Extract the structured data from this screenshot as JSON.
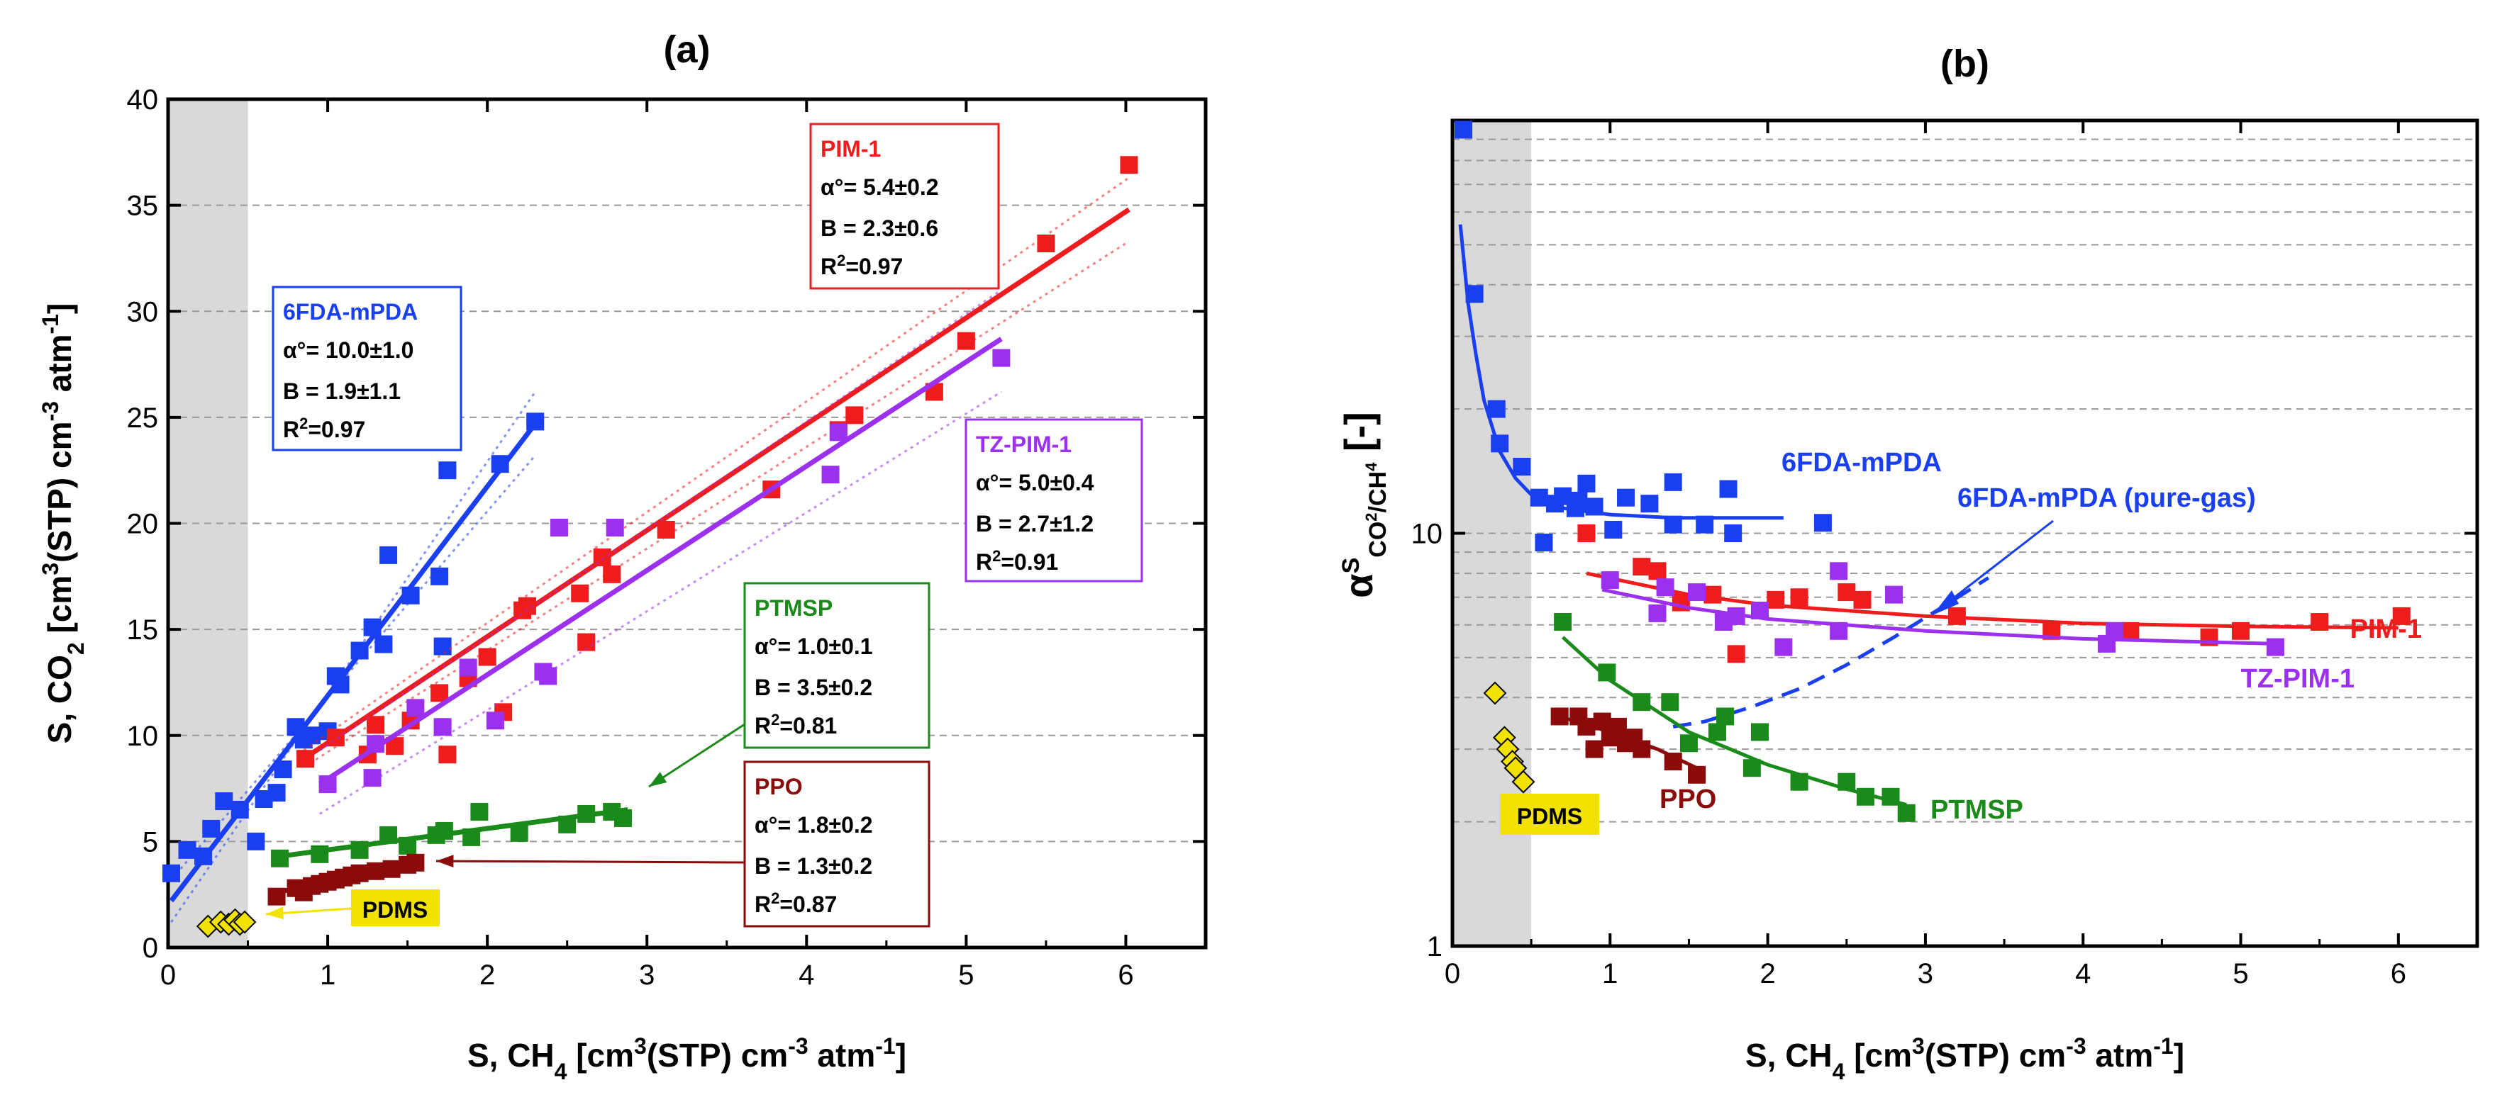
{
  "chart_data": [
    {
      "type": "scatter",
      "title": "(a)",
      "xlabel": {
        "main": "S, CH",
        "sub": "4",
        "rest": " [cm",
        "sup": "3",
        "rest2": "(STP) cm",
        "sup2": "-3",
        "rest3": " atm",
        "sup3": "-1",
        "end": "]"
      },
      "ylabel": {
        "main": "S, CO",
        "sub": "2",
        "rest": " [cm",
        "sup": "3",
        "rest2": "(STP) cm",
        "sup2": "-3",
        "rest3": " atm",
        "sup3": "-1",
        "end": "]"
      },
      "xlim": [
        0,
        6.5
      ],
      "ylim": [
        0,
        40
      ],
      "xticks": [
        0,
        1,
        2,
        3,
        4,
        5,
        6
      ],
      "yticks": [
        0,
        5,
        10,
        15,
        20,
        25,
        30,
        35,
        40
      ],
      "grid": "horizontal dashed",
      "shaded_x": [
        0,
        0.5
      ],
      "series": [
        {
          "name": "6FDA-mPDA",
          "color": "#1a3ff0",
          "marker": "square",
          "x": [
            0.02,
            0.12,
            0.22,
            0.27,
            0.35,
            0.45,
            0.55,
            0.6,
            0.68,
            0.72,
            0.8,
            0.85,
            0.9,
            1.0,
            1.05,
            1.08,
            1.2,
            1.28,
            1.35,
            1.38,
            1.52,
            1.7,
            1.75,
            1.72,
            2.08,
            2.3
          ],
          "y": [
            3.5,
            4.6,
            4.3,
            5.6,
            6.9,
            6.5,
            5.0,
            7.0,
            7.3,
            8.4,
            10.4,
            9.8,
            10.0,
            10.2,
            12.8,
            12.4,
            14.0,
            15.1,
            14.3,
            18.5,
            16.6,
            17.5,
            22.5,
            14.2,
            22.8,
            24.8
          ],
          "fit": {
            "x": [
              0.02,
              2.3
            ],
            "y": [
              2.2,
              24.7
            ]
          },
          "band_upper": {
            "x": [
              0.02,
              2.3
            ],
            "y": [
              1.2,
              26.2
            ]
          },
          "band_lower": {
            "x": [
              0.02,
              2.3
            ],
            "y": [
              3.2,
              23.2
            ]
          },
          "box": {
            "name": "6FDA-mPDA",
            "alpha": "α°= 10.0±1.0",
            "b": "B = 1.9±1.1",
            "r2": "R",
            "r2sup": "2",
            "r2val": "=0.97"
          }
        },
        {
          "name": "PIM-1",
          "color": "#ee1c1c",
          "marker": "square",
          "x": [
            0.86,
            1.05,
            1.25,
            1.3,
            1.42,
            1.52,
            1.7,
            1.75,
            1.88,
            2.0,
            2.1,
            2.22,
            2.25,
            2.58,
            2.62,
            2.72,
            2.78,
            3.12,
            3.78,
            4.2,
            4.3,
            4.8,
            5.0,
            5.5,
            6.02
          ],
          "y": [
            8.9,
            9.9,
            9.1,
            10.5,
            9.5,
            10.7,
            12.0,
            9.1,
            12.7,
            13.7,
            11.1,
            15.9,
            16.1,
            16.7,
            14.4,
            18.4,
            17.6,
            19.7,
            21.6,
            24.4,
            25.1,
            26.2,
            28.6,
            33.2,
            36.9
          ],
          "fit": {
            "x": [
              0.85,
              6.02
            ],
            "y": [
              8.9,
              34.8
            ]
          },
          "band_upper": {
            "x": [
              0.85,
              6.02
            ],
            "y": [
              9.3,
              36.3
            ]
          },
          "band_lower": {
            "x": [
              0.85,
              6.02
            ],
            "y": [
              8.5,
              33.3
            ]
          },
          "box": {
            "name": "PIM-1",
            "alpha": "α°= 5.4±0.2",
            "b": "B = 2.3±0.6",
            "r2": "R",
            "r2sup": "2",
            "r2val": "=0.97"
          }
        },
        {
          "name": "TZ-PIM-1",
          "color": "#9b30ee",
          "marker": "square",
          "x": [
            1.0,
            1.28,
            1.3,
            1.55,
            1.72,
            1.88,
            2.05,
            2.35,
            2.38,
            2.45,
            2.8,
            4.15,
            4.2,
            5.22
          ],
          "y": [
            7.7,
            8.0,
            9.6,
            11.3,
            10.4,
            13.2,
            10.7,
            13.0,
            12.8,
            19.8,
            19.8,
            22.3,
            24.3,
            27.8
          ],
          "fit": {
            "x": [
              0.95,
              5.22
            ],
            "y": [
              7.7,
              28.7
            ]
          },
          "band_upper": {
            "x": [
              0.95,
              5.22
            ],
            "y": [
              9.3,
              31.0
            ]
          },
          "band_lower": {
            "x": [
              0.95,
              5.22
            ],
            "y": [
              6.3,
              26.2
            ]
          },
          "box": {
            "name": "TZ-PIM-1",
            "alpha": "α°= 5.0±0.4",
            "b": "B = 2.7±1.2",
            "r2": "R",
            "r2sup": "2",
            "r2val": "=0.91"
          }
        },
        {
          "name": "PTMSP",
          "color": "#1a8a1a",
          "marker": "square",
          "x": [
            0.7,
            0.95,
            1.2,
            1.38,
            1.5,
            1.68,
            1.73,
            1.9,
            1.95,
            2.2,
            2.5,
            2.62,
            2.78,
            2.85
          ],
          "y": [
            4.2,
            4.4,
            4.6,
            5.3,
            4.8,
            5.3,
            5.5,
            5.2,
            6.4,
            5.4,
            5.8,
            6.3,
            6.4,
            6.1
          ],
          "fit": {
            "x": [
              0.7,
              2.88
            ],
            "y": [
              4.3,
              6.5
            ]
          },
          "box": {
            "name": "PTMSP",
            "alpha": "α°= 1.0±0.1",
            "b": "B = 3.5±0.2",
            "r2": "R",
            "r2sup": "2",
            "r2val": "=0.81"
          }
        },
        {
          "name": "PPO",
          "color": "#8b0a0a",
          "marker": "square",
          "x": [
            0.68,
            0.8,
            0.85,
            0.9,
            0.95,
            1.0,
            1.05,
            1.1,
            1.15,
            1.2,
            1.3,
            1.4,
            1.5,
            1.55
          ],
          "y": [
            2.4,
            2.8,
            2.6,
            2.9,
            3.0,
            3.1,
            3.2,
            3.3,
            3.4,
            3.5,
            3.6,
            3.7,
            3.9,
            4.0
          ],
          "fit": {
            "x": [
              0.68,
              1.55
            ],
            "y": [
              2.6,
              3.9
            ]
          },
          "box": {
            "name": "PPO",
            "alpha": "α°= 1.8±0.2",
            "b": "B = 1.3±0.2",
            "r2": "R",
            "r2sup": "2",
            "r2val": "=0.87"
          }
        },
        {
          "name": "PDMS",
          "color": "#f2e200",
          "marker": "diamond",
          "x": [
            0.25,
            0.33,
            0.38,
            0.42,
            0.45,
            0.48
          ],
          "y": [
            1.0,
            1.2,
            1.1,
            1.3,
            1.1,
            1.2
          ],
          "label": "PDMS"
        }
      ]
    },
    {
      "type": "scatter",
      "title": "(b)",
      "xlabel": {
        "main": "S, CH",
        "sub": "4",
        "rest": " [cm",
        "sup": "3",
        "rest2": "(STP) cm",
        "sup2": "-3",
        "rest3": " atm",
        "sup3": "-1",
        "end": "]"
      },
      "ylabel": {
        "alpha": "α",
        "sup": "S",
        "sub": "CO",
        "sub2": "2",
        "slash": "/CH",
        "sub3": "4",
        "unit": "[-]"
      },
      "yscale": "log",
      "xlim": [
        0,
        6.5
      ],
      "ylim": [
        1,
        100
      ],
      "xticks": [
        0,
        1,
        2,
        3,
        4,
        5,
        6
      ],
      "yticks": [
        1,
        10
      ],
      "ytick_labels": [
        "1",
        "10"
      ],
      "grid": "horizontal dashed minor",
      "shaded_x": [
        0,
        0.5
      ],
      "series": [
        {
          "name": "6FDA-mPDA",
          "color": "#1a3ff0",
          "marker": "square",
          "x": [
            0.07,
            0.14,
            0.28,
            0.3,
            0.44,
            0.55,
            0.58,
            0.65,
            0.7,
            0.78,
            0.8,
            0.85,
            0.9,
            1.02,
            1.1,
            1.25,
            1.4,
            1.4,
            1.6,
            1.75,
            1.78,
            2.35
          ],
          "y": [
            95,
            38,
            20,
            16.5,
            14.5,
            12.2,
            9.5,
            11.8,
            12.3,
            11.5,
            12.0,
            13.2,
            11.6,
            10.2,
            12.2,
            11.8,
            10.5,
            13.3,
            10.5,
            12.8,
            10.0,
            10.6
          ],
          "fit_x": [
            0.05,
            0.1,
            0.15,
            0.2,
            0.3,
            0.4,
            0.5,
            0.7,
            1.0,
            1.4,
            1.8,
            2.1
          ],
          "fit_y": [
            56,
            36,
            27,
            21,
            15.8,
            13.6,
            12.4,
            11.5,
            11.1,
            10.9,
            10.9,
            10.9
          ],
          "label": "6FDA-mPDA"
        },
        {
          "name": "6FDA-mPDA (pure-gas)",
          "color": "#1a3ff0",
          "marker": "none",
          "fit_x": [
            1.4,
            1.6,
            1.9,
            2.2,
            2.5,
            2.8,
            3.1,
            3.4
          ],
          "fit_y": [
            3.4,
            3.5,
            3.8,
            4.2,
            4.8,
            5.6,
            6.6,
            7.8
          ],
          "dashed": true,
          "label": "6FDA-mPDA (pure-gas)"
        },
        {
          "name": "PIM-1",
          "color": "#ee1c1c",
          "marker": "square",
          "x": [
            0.85,
            1.2,
            1.3,
            1.45,
            1.65,
            1.8,
            2.05,
            2.2,
            2.5,
            2.6,
            3.2,
            3.8,
            4.3,
            4.8,
            5.0,
            5.5,
            6.02
          ],
          "y": [
            10.0,
            8.3,
            8.1,
            6.8,
            7.1,
            5.1,
            6.9,
            7.0,
            7.2,
            6.9,
            6.3,
            5.8,
            5.8,
            5.6,
            5.8,
            6.1,
            6.3
          ],
          "fit_x": [
            0.85,
            1.5,
            2.0,
            3.0,
            4.0,
            5.0,
            6.0
          ],
          "fit_y": [
            8.0,
            7.1,
            6.7,
            6.3,
            6.05,
            5.95,
            5.9
          ],
          "label": "PIM-1"
        },
        {
          "name": "TZ-PIM-1",
          "color": "#9b30ee",
          "marker": "square",
          "x": [
            1.0,
            1.3,
            1.35,
            1.55,
            1.72,
            1.8,
            1.95,
            2.1,
            2.45,
            2.45,
            2.8,
            4.15,
            4.2,
            5.22
          ],
          "y": [
            7.7,
            6.4,
            7.4,
            7.2,
            6.1,
            6.3,
            6.5,
            5.3,
            8.1,
            5.8,
            7.1,
            5.4,
            5.8,
            5.3
          ],
          "fit_x": [
            0.95,
            1.5,
            2.0,
            3.0,
            4.0,
            5.22
          ],
          "fit_y": [
            7.3,
            6.6,
            6.2,
            5.8,
            5.55,
            5.4
          ],
          "label": "TZ-PIM-1"
        },
        {
          "name": "PTMSP",
          "color": "#1a8a1a",
          "marker": "square",
          "x": [
            0.7,
            0.98,
            1.2,
            1.38,
            1.5,
            1.68,
            1.73,
            1.9,
            1.95,
            2.2,
            2.5,
            2.62,
            2.78,
            2.88
          ],
          "y": [
            6.1,
            4.6,
            3.9,
            3.9,
            3.1,
            3.3,
            3.6,
            2.7,
            3.3,
            2.5,
            2.5,
            2.3,
            2.3,
            2.1
          ],
          "fit_x": [
            0.7,
            1.0,
            1.5,
            2.0,
            2.5,
            2.88
          ],
          "fit_y": [
            5.6,
            4.4,
            3.3,
            2.75,
            2.4,
            2.2
          ],
          "label": "PTMSP"
        },
        {
          "name": "PPO",
          "color": "#8b0a0a",
          "marker": "square",
          "x": [
            0.68,
            0.8,
            0.85,
            0.9,
            0.95,
            1.0,
            1.05,
            1.1,
            1.15,
            1.2,
            1.4,
            1.55
          ],
          "y": [
            3.6,
            3.6,
            3.4,
            3.0,
            3.5,
            3.2,
            3.4,
            3.1,
            3.2,
            3.0,
            2.8,
            2.6
          ],
          "fit_x": [
            0.68,
            1.0,
            1.3,
            1.55
          ],
          "fit_y": [
            3.6,
            3.3,
            3.0,
            2.7
          ],
          "label": "PPO"
        },
        {
          "name": "PDMS",
          "color": "#f2e200",
          "marker": "diamond",
          "x": [
            0.27,
            0.33,
            0.35,
            0.38,
            0.4,
            0.45
          ],
          "y": [
            4.1,
            3.2,
            3.0,
            2.8,
            2.7,
            2.5
          ],
          "label": "PDMS"
        }
      ]
    }
  ]
}
